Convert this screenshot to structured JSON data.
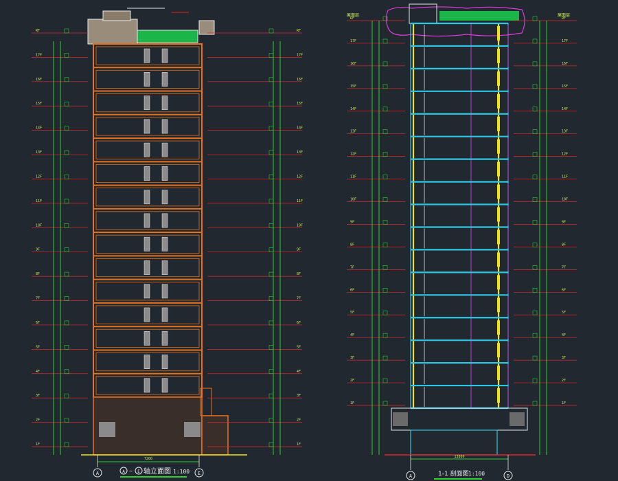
{
  "drawing": {
    "background": "#212830",
    "colors": {
      "level_line": "#e0252a",
      "elevation": "#2fd12f",
      "facade_frame": "#e8721c",
      "wall_white": "#e8e8e8",
      "section_column": "#f2e21a",
      "section_slab": "#2fc6e6",
      "section_wall": "#c23cd0",
      "label_text": "#c8e85a",
      "axis_circle": "#e8e8e8",
      "roof_green": "#1bb54a",
      "cloud_outline": "#d63cd6"
    }
  },
  "left_elevation": {
    "title_prefix": "A",
    "title_suffix": "轴立面图",
    "title_circle_end": "E",
    "scale": "1:100",
    "axis_left": "A",
    "axis_right": "E",
    "width_dim": "7200",
    "floor_labels": [
      "1F",
      "2F",
      "3F",
      "4F",
      "5F",
      "6F",
      "7F",
      "8F",
      "9F",
      "10F",
      "11F",
      "12F",
      "13F",
      "14F",
      "15F",
      "16F",
      "17F",
      "RF"
    ]
  },
  "right_section": {
    "title": "1-1 剖面图",
    "scale": "1:100",
    "axis_left": "A",
    "axis_right": "D",
    "width_dim": "13800",
    "roof_labels": [
      "屋面层",
      "屋面层"
    ],
    "floor_labels": [
      "1F",
      "2F",
      "3F",
      "4F",
      "5F",
      "6F",
      "7F",
      "8F",
      "9F",
      "10F",
      "11F",
      "12F",
      "13F",
      "14F",
      "15F",
      "16F",
      "17F",
      "RF"
    ]
  }
}
